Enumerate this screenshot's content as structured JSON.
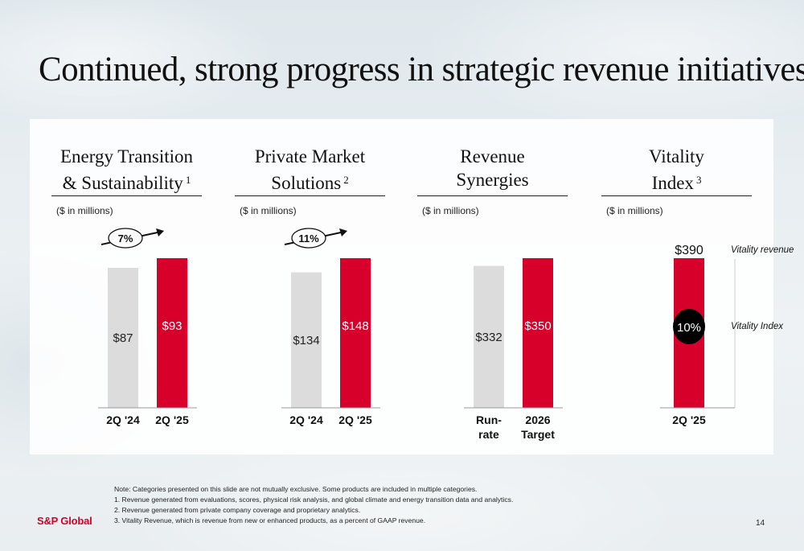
{
  "slide": {
    "title": "Continued, strong progress in strategic revenue initiatives",
    "notes": [
      "Note:  Categories presented on this slide are not mutually exclusive. Some products are included in multiple categories.",
      "1. Revenue generated from evaluations, scores, physical risk analysis, and global climate and energy transition data and analytics.",
      "2. Revenue generated from private company coverage and proprietary analytics.",
      "3. Vitality Revenue, which is revenue from new or enhanced products, as a percent of GAAP revenue."
    ],
    "logo": "S&P Global",
    "page_number": "14"
  },
  "colors": {
    "accent_red": "#d6002a",
    "bar_gray": "#dcdcdc",
    "badge_black": "#000000"
  },
  "chart_data": [
    {
      "type": "bar",
      "title": [
        "Energy Transition",
        "& Sustainability"
      ],
      "footnote": "1",
      "units": "($ in millions)",
      "categories": [
        "2Q '24",
        "2Q '25"
      ],
      "values": [
        87,
        93
      ],
      "labels": [
        "$87",
        "$93"
      ],
      "ylim": [
        0,
        93
      ],
      "growth": "7%"
    },
    {
      "type": "bar",
      "title": [
        "Private Market",
        "Solutions"
      ],
      "footnote": "2",
      "units": "($ in millions)",
      "categories": [
        "2Q '24",
        "2Q '25"
      ],
      "values": [
        134,
        148
      ],
      "labels": [
        "$134",
        "$148"
      ],
      "ylim": [
        0,
        148
      ],
      "growth": "11%"
    },
    {
      "type": "bar",
      "title": [
        "Revenue",
        "Synergies"
      ],
      "footnote": "",
      "units": "($ in millions)",
      "categories": [
        [
          "Run-",
          "rate"
        ],
        [
          "2026",
          "Target"
        ]
      ],
      "values": [
        332,
        350
      ],
      "labels": [
        "$332",
        "$350"
      ],
      "ylim": [
        0,
        350
      ],
      "growth": ""
    },
    {
      "type": "bar",
      "title": [
        "Vitality",
        "Index"
      ],
      "footnote": "3",
      "units": "($ in millions)",
      "categories": [
        "2Q '25"
      ],
      "values": [
        390
      ],
      "labels": [
        "$390"
      ],
      "ylim": [
        0,
        390
      ],
      "index_value": "10%",
      "legend": [
        "Vitality revenue",
        "Vitality Index"
      ]
    }
  ]
}
